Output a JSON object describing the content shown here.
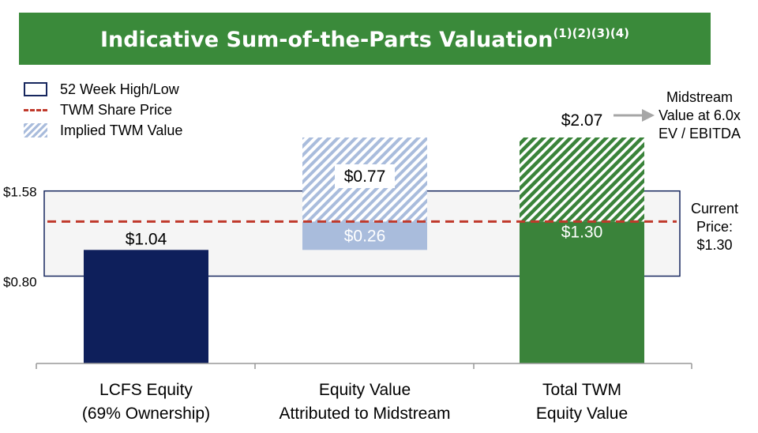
{
  "banner": {
    "title": "Indicative Sum-of-the-Parts Valuation",
    "footnotes": "(1)(2)(3)(4)",
    "color": "#3a8a3a"
  },
  "legend": {
    "items": [
      {
        "label": "52 Week High/Low",
        "kind": "box"
      },
      {
        "label": "TWM Share Price",
        "kind": "dashed-line"
      },
      {
        "label": "Implied TWM Value",
        "kind": "hatched"
      }
    ]
  },
  "chart_data": {
    "type": "bar",
    "categories": [
      [
        "LCFS Equity",
        "(69% Ownership)"
      ],
      [
        "Equity Value",
        "Attributed to Midstream"
      ],
      [
        "Total TWM",
        "Equity Value"
      ]
    ],
    "bars": [
      {
        "segments": [
          {
            "base": 0,
            "value": 1.04,
            "label": "$1.04",
            "fill": "#0e1f5b",
            "label_pos": "above"
          }
        ]
      },
      {
        "segments": [
          {
            "base": 1.04,
            "value": 0.26,
            "label": "$0.26",
            "fill": "#a9bcdc",
            "label_pos": "inside"
          },
          {
            "base": 1.3,
            "value": 0.77,
            "label": "$0.77",
            "fill": "hatch-blue",
            "label_pos": "inside-box"
          }
        ]
      },
      {
        "segments": [
          {
            "base": 0,
            "value": 1.3,
            "label": "$1.30",
            "fill": "#3a833a",
            "label_pos": "inside-top"
          },
          {
            "base": 1.3,
            "value": 0.77,
            "label": "",
            "fill": "hatch-green",
            "label_pos": "none"
          }
        ]
      }
    ],
    "total_label": "$2.07",
    "range_52_week": {
      "low": 0.8,
      "high": 1.58,
      "low_label": "$0.80",
      "high_label": "$1.58"
    },
    "share_price": 1.3,
    "ylim": [
      0,
      2.07
    ],
    "colors": {
      "range_border": "#17275e",
      "range_fill": "#f5f5f5",
      "share_price_line": "#c0392b",
      "axis": "#999999"
    }
  },
  "annotations": {
    "midstream": [
      "Midstream",
      "Value at 6.0x",
      "EV / EBITDA"
    ],
    "current_price": [
      "Current",
      "Price:",
      "$1.30"
    ]
  }
}
